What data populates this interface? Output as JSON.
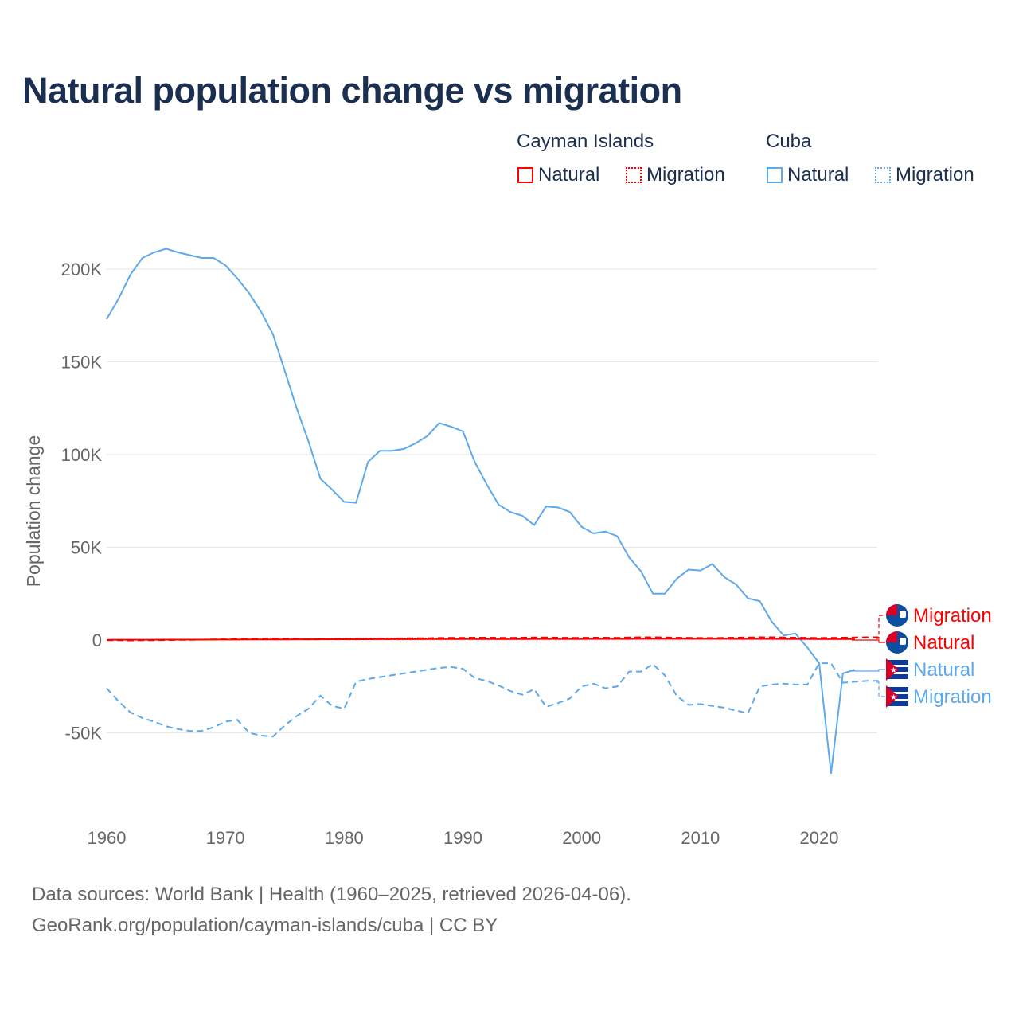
{
  "title": "Natural population change vs migration",
  "legend": {
    "groups": [
      {
        "name": "Cayman Islands",
        "items": [
          "Natural",
          "Migration"
        ],
        "color": "#ff0000"
      },
      {
        "name": "Cuba",
        "items": [
          "Natural",
          "Migration"
        ],
        "color": "#5ea8ec"
      }
    ]
  },
  "footer": {
    "line1": "Data sources: World Bank | Health (1960–2025, retrieved 2026-04-06).",
    "line2": "GeoRank.org/population/cayman-islands/cuba | CC BY"
  },
  "chart_data": {
    "type": "line",
    "title": "Natural population change vs migration",
    "xlabel": "",
    "ylabel": "Population change",
    "xlim": [
      1960,
      2025
    ],
    "ylim": [
      -85000,
      230000
    ],
    "x_ticks": [
      "1960",
      "1970",
      "1980",
      "1990",
      "2000",
      "2010",
      "2020"
    ],
    "y_ticks": [
      {
        "v": 200000,
        "label": "200K"
      },
      {
        "v": 150000,
        "label": "150K"
      },
      {
        "v": 100000,
        "label": "100K"
      },
      {
        "v": 50000,
        "label": "50K"
      },
      {
        "v": 0,
        "label": "0"
      },
      {
        "v": -50000,
        "label": "-50K"
      }
    ],
    "grid": true,
    "series": [
      {
        "name": "Cuba Natural",
        "label": "Natural",
        "country": "Cuba",
        "color": "#5ea8ec",
        "dash": false,
        "start": 1960,
        "values": [
          173000,
          184000,
          197000,
          206000,
          209000,
          211000,
          209000,
          207500,
          206000,
          206000,
          202000,
          195000,
          187000,
          177000,
          165000,
          145000,
          125000,
          107000,
          87000,
          81000,
          74500,
          74000,
          96000,
          102000,
          102000,
          103000,
          106000,
          110000,
          117000,
          115000,
          112500,
          96000,
          84000,
          73000,
          69000,
          67000,
          62000,
          72000,
          71500,
          69000,
          61000,
          57500,
          58500,
          56000,
          44500,
          37000,
          25000,
          25000,
          33000,
          38000,
          37500,
          41000,
          34000,
          30000,
          22500,
          21000,
          10000,
          2500,
          3500,
          -4000,
          -12500,
          -72000,
          -18000,
          -16000
        ]
      },
      {
        "name": "Cuba Migration",
        "label": "Migration",
        "country": "Cuba",
        "color": "#5ea8ec",
        "dash": true,
        "start": 1960,
        "values": [
          -26000,
          -33000,
          -39000,
          -42000,
          -44000,
          -46500,
          -48000,
          -49000,
          -49000,
          -47000,
          -44000,
          -43000,
          -50000,
          -51500,
          -52000,
          -46000,
          -41000,
          -37000,
          -30000,
          -35500,
          -37000,
          -22500,
          -21000,
          -20000,
          -19000,
          -18000,
          -17000,
          -16000,
          -15000,
          -14500,
          -15500,
          -20500,
          -22000,
          -24500,
          -27500,
          -29500,
          -26500,
          -36000,
          -34000,
          -31500,
          -25000,
          -23500,
          -26000,
          -25000,
          -17000,
          -17000,
          -13000,
          -19000,
          -30000,
          -35000,
          -34500,
          -35500,
          -36500,
          -38000,
          -39500,
          -25000,
          -24000,
          -23500,
          -24000,
          -24000,
          -12500,
          -12500,
          -23000,
          -22500,
          -22000,
          -22000
        ]
      },
      {
        "name": "Cayman Islands Natural",
        "label": "Natural",
        "country": "Cayman Islands",
        "color": "#ff0000",
        "dash": false,
        "start": 1960,
        "values": [
          150,
          160,
          170,
          180,
          190,
          200,
          210,
          220,
          230,
          240,
          250,
          270,
          290,
          310,
          330,
          350,
          370,
          390,
          410,
          420,
          430,
          440,
          450,
          460,
          470,
          480,
          490,
          500,
          500,
          510,
          520,
          530,
          540,
          550,
          560,
          570,
          580,
          590,
          600,
          610,
          620,
          630,
          640,
          650,
          660,
          670,
          680,
          690,
          700,
          700,
          690,
          680,
          670,
          660,
          650,
          640,
          630,
          620,
          600,
          590,
          560,
          540,
          520,
          500
        ]
      },
      {
        "name": "Cayman Islands Migration",
        "label": "Migration",
        "country": "Cayman Islands",
        "color": "#ff0000",
        "dash": true,
        "start": 1960,
        "values": [
          -100,
          -150,
          -200,
          -150,
          -100,
          0,
          100,
          150,
          200,
          300,
          400,
          500,
          500,
          600,
          700,
          600,
          500,
          400,
          400,
          500,
          600,
          700,
          700,
          800,
          800,
          900,
          1000,
          1000,
          1100,
          1200,
          1200,
          1300,
          1300,
          1200,
          1200,
          1300,
          1400,
          1400,
          1300,
          1200,
          1200,
          1300,
          1300,
          1200,
          1400,
          1500,
          1500,
          1400,
          1300,
          1200,
          1100,
          1100,
          1200,
          1300,
          1400,
          1500,
          1500,
          1400,
          1300,
          1200,
          1100,
          1200,
          1300,
          1400,
          1500,
          1500
        ]
      }
    ],
    "end_labels": [
      {
        "text": "Migration",
        "country": "Cayman Islands",
        "color": "#ff0000"
      },
      {
        "text": "Natural",
        "country": "Cayman Islands",
        "color": "#ff0000"
      },
      {
        "text": "Natural",
        "country": "Cuba",
        "color": "#5ea8ec"
      },
      {
        "text": "Migration",
        "country": "Cuba",
        "color": "#5ea8ec"
      }
    ]
  }
}
